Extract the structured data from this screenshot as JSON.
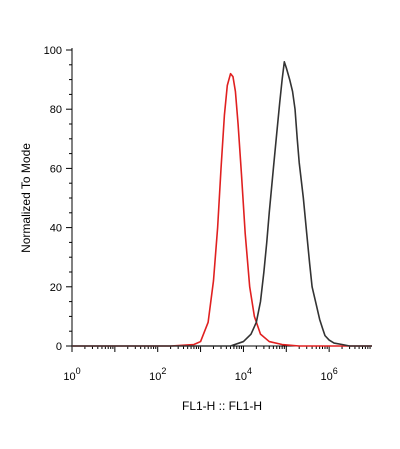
{
  "chart_data": {
    "type": "line",
    "title": "",
    "xlabel": "FL1-H :: FL1-H",
    "ylabel": "Normalized To Mode",
    "x_scale": "log",
    "xlim": [
      1,
      10000000
    ],
    "ylim": [
      0,
      100
    ],
    "x_ticks": [
      {
        "base": "10",
        "exp": "0",
        "value": 1
      },
      {
        "base": "10",
        "exp": "2",
        "value": 100
      },
      {
        "base": "10",
        "exp": "4",
        "value": 10000
      },
      {
        "base": "10",
        "exp": "6",
        "value": 1000000
      }
    ],
    "y_ticks": [
      "0",
      "20",
      "40",
      "60",
      "80",
      "100"
    ],
    "y_tick_values": [
      0,
      20,
      40,
      60,
      80,
      100
    ],
    "grid": false,
    "legend": "none",
    "series": [
      {
        "color": "#e02020",
        "points": [
          [
            1,
            0
          ],
          [
            200,
            0
          ],
          [
            700,
            0.5
          ],
          [
            1000,
            1.5
          ],
          [
            1500,
            8
          ],
          [
            2000,
            22
          ],
          [
            2500,
            40
          ],
          [
            3000,
            60
          ],
          [
            3600,
            78
          ],
          [
            4200,
            88
          ],
          [
            5000,
            92
          ],
          [
            5700,
            91
          ],
          [
            6500,
            86
          ],
          [
            7500,
            75
          ],
          [
            9000,
            58
          ],
          [
            11000,
            38
          ],
          [
            14000,
            20
          ],
          [
            18000,
            10
          ],
          [
            25000,
            4
          ],
          [
            40000,
            1.5
          ],
          [
            80000,
            0.5
          ],
          [
            200000,
            0
          ],
          [
            10000000,
            0
          ]
        ]
      },
      {
        "color": "#333333",
        "points": [
          [
            1,
            0
          ],
          [
            5000,
            0
          ],
          [
            10000,
            1.5
          ],
          [
            15000,
            4
          ],
          [
            20000,
            8
          ],
          [
            25000,
            15
          ],
          [
            30000,
            25
          ],
          [
            35000,
            35
          ],
          [
            40000,
            45
          ],
          [
            50000,
            60
          ],
          [
            60000,
            72
          ],
          [
            70000,
            82
          ],
          [
            80000,
            90
          ],
          [
            90000,
            96
          ],
          [
            100000,
            94
          ],
          [
            120000,
            90
          ],
          [
            140000,
            86
          ],
          [
            160000,
            80
          ],
          [
            180000,
            70
          ],
          [
            200000,
            62
          ],
          [
            250000,
            50
          ],
          [
            300000,
            38
          ],
          [
            350000,
            28
          ],
          [
            400000,
            20
          ],
          [
            500000,
            14
          ],
          [
            600000,
            9
          ],
          [
            700000,
            6
          ],
          [
            800000,
            3.5
          ],
          [
            1000000,
            2
          ],
          [
            1300000,
            1
          ],
          [
            2000000,
            0.5
          ],
          [
            3000000,
            0
          ],
          [
            10000000,
            0
          ]
        ]
      }
    ]
  }
}
